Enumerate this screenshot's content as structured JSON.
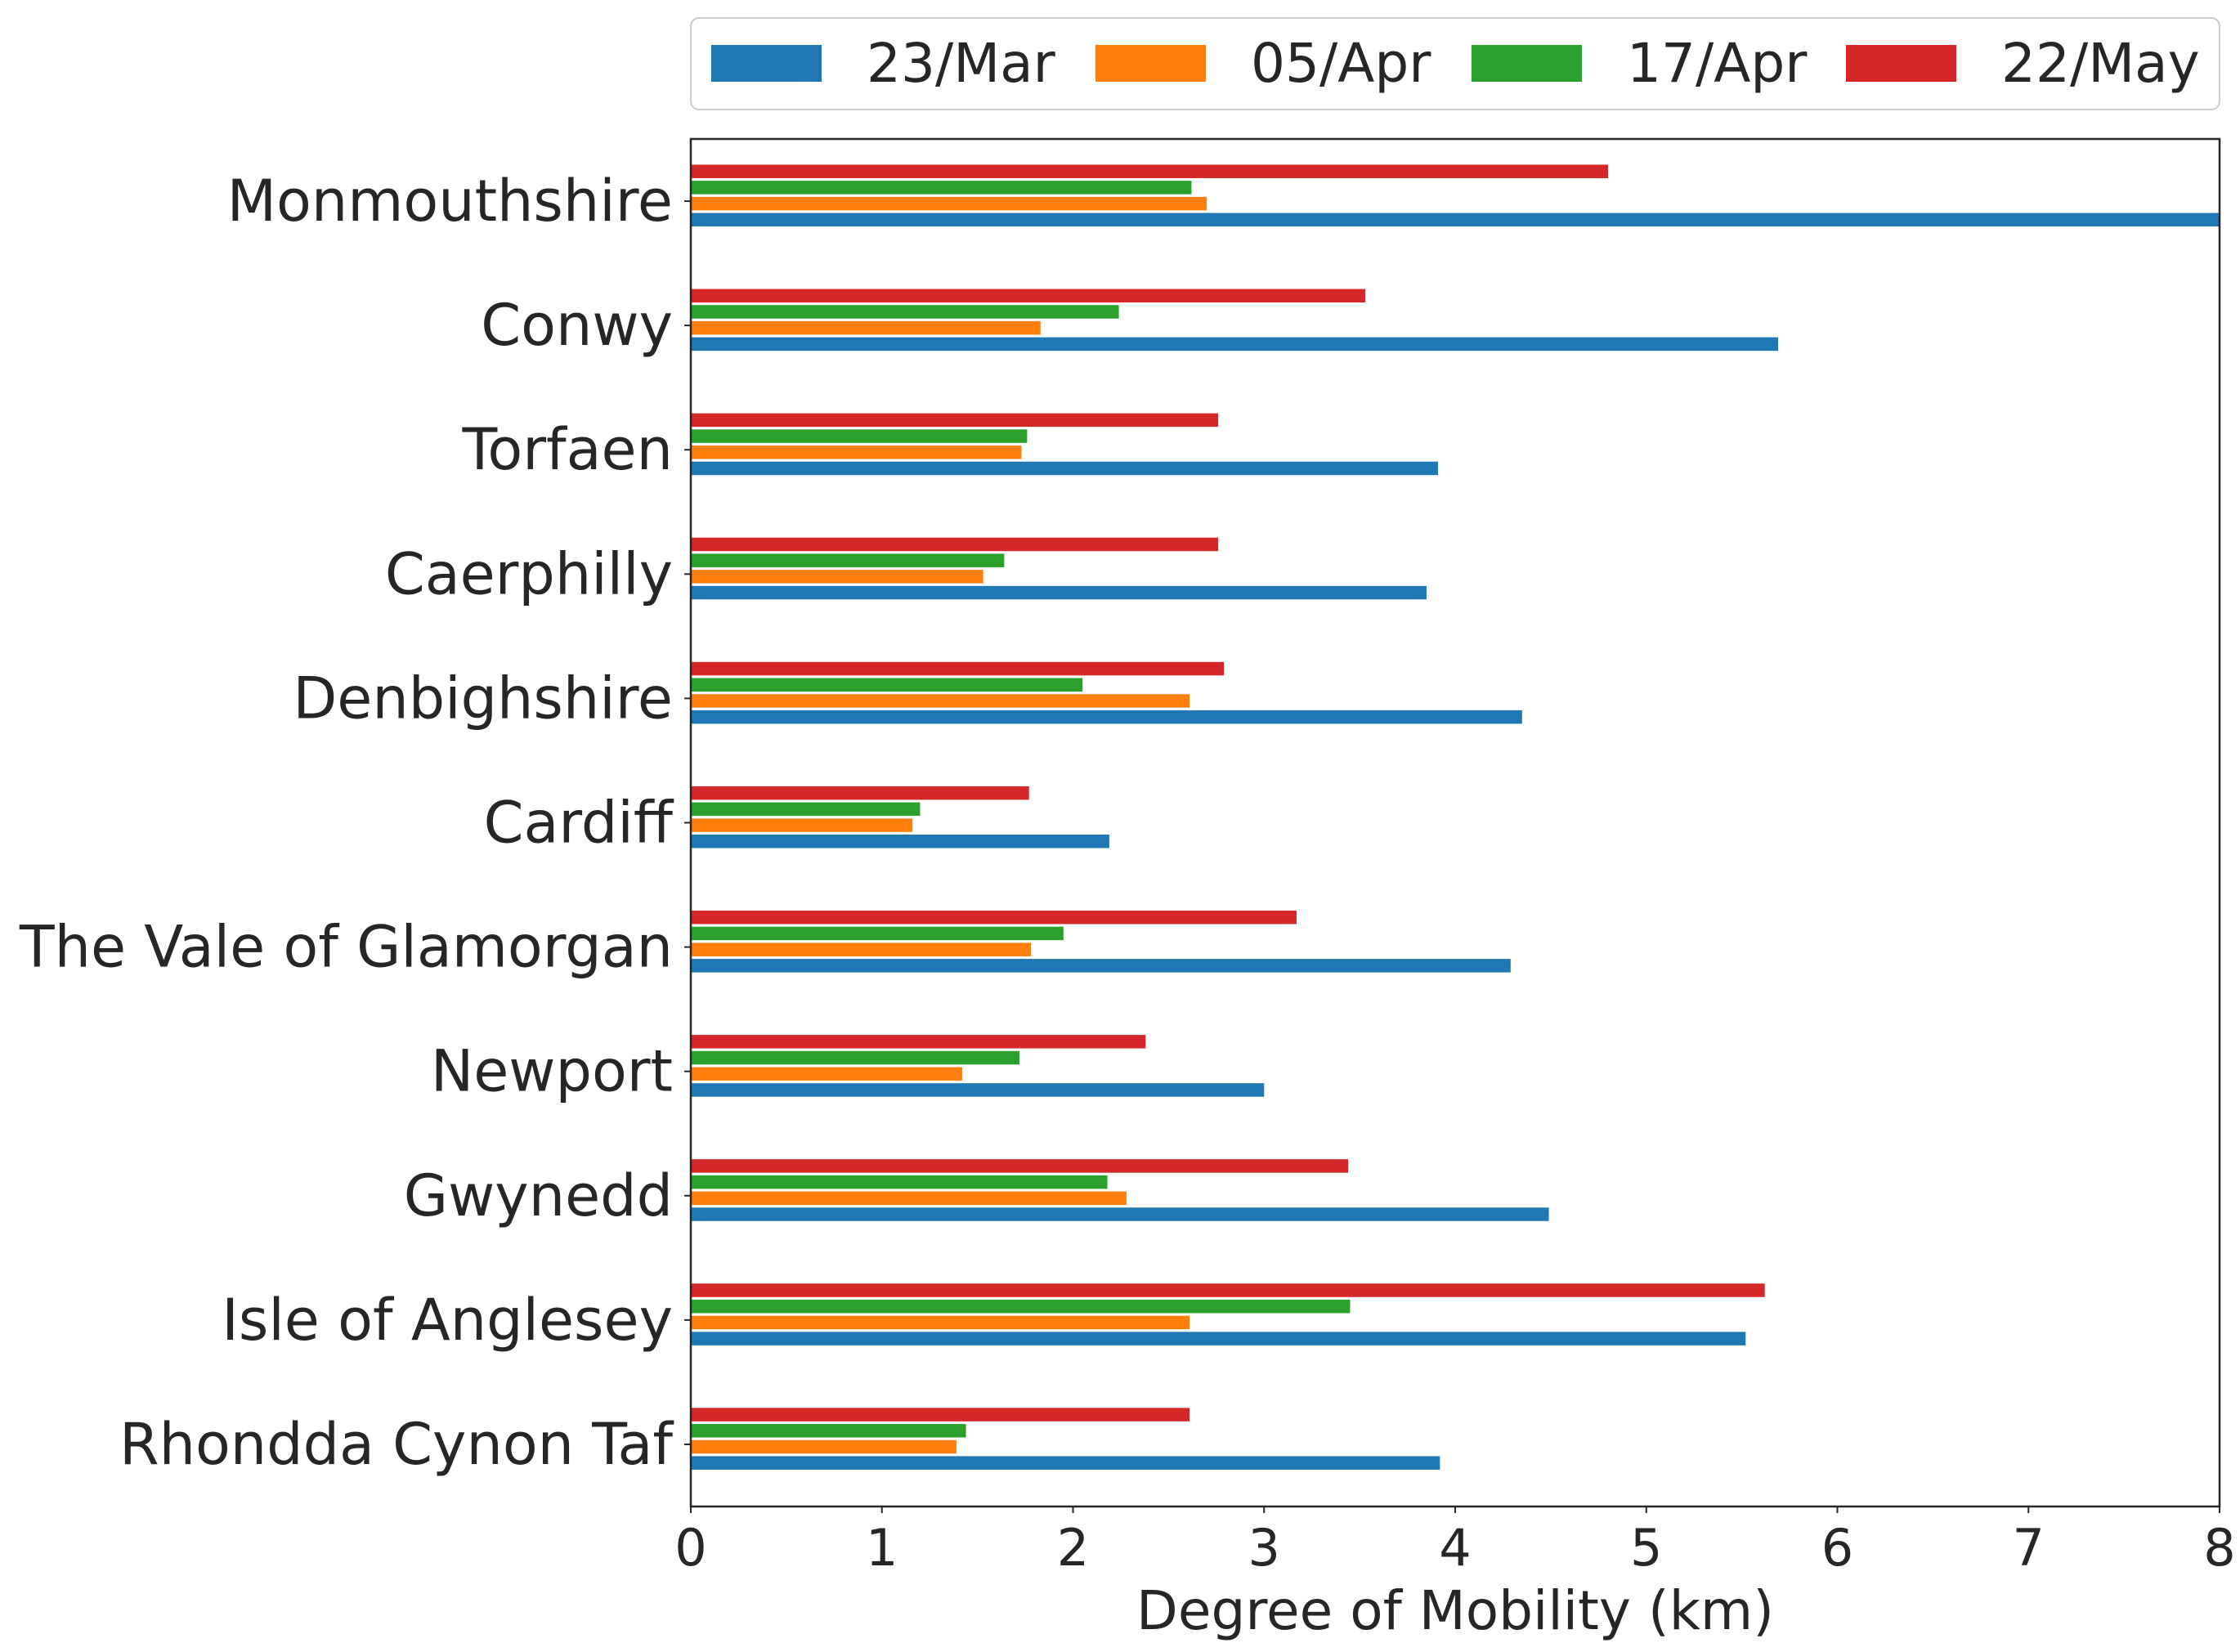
{
  "chart_data": {
    "type": "bar",
    "orientation": "horizontal",
    "categories": [
      "Monmouthshire",
      "Conwy",
      "Torfaen",
      "Caerphilly",
      "Denbighshire",
      "Cardiff",
      "The Vale of Glamorgan",
      "Newport",
      "Gwynedd",
      "Isle of Anglesey",
      "Rhondda Cynon Taf"
    ],
    "series": [
      {
        "name": "23/Mar",
        "color": "#1f77b4",
        "values": [
          8.0,
          5.69,
          3.91,
          3.85,
          4.35,
          2.19,
          4.29,
          3.0,
          4.49,
          5.52,
          3.92
        ]
      },
      {
        "name": "05/Apr",
        "color": "#ff7f0e",
        "values": [
          2.7,
          1.83,
          1.73,
          1.53,
          2.61,
          1.16,
          1.78,
          1.42,
          2.28,
          2.61,
          1.39
        ]
      },
      {
        "name": "17/Apr",
        "color": "#2ca02c",
        "values": [
          2.62,
          2.24,
          1.76,
          1.64,
          2.05,
          1.2,
          1.95,
          1.72,
          2.18,
          3.45,
          1.44
        ]
      },
      {
        "name": "22/May",
        "color": "#d62728",
        "values": [
          4.8,
          3.53,
          2.76,
          2.76,
          2.79,
          1.77,
          3.17,
          2.38,
          3.44,
          5.62,
          2.61
        ]
      }
    ],
    "xlabel": "Degree of Mobility (km)",
    "ylabel": "",
    "xlim": [
      0,
      8
    ],
    "xticks": [
      "0",
      "1",
      "2",
      "3",
      "4",
      "5",
      "6",
      "7",
      "8"
    ],
    "grid": false,
    "legend_position": "top"
  }
}
